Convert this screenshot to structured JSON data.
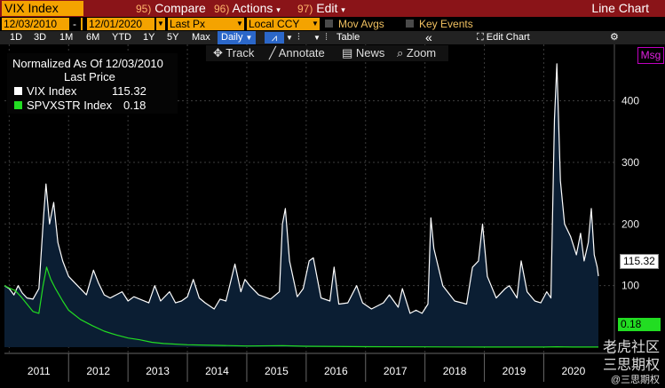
{
  "title_bar": {
    "ticker": "VIX Index",
    "compare": {
      "num": "95)",
      "label": "Compare"
    },
    "actions": {
      "num": "96)",
      "label": "Actions"
    },
    "edit": {
      "num": "97)",
      "label": "Edit"
    },
    "chart_type": "Line Chart"
  },
  "settings_bar": {
    "start_date": "12/03/2010",
    "end_date": "12/01/2020",
    "field": "Last Px",
    "currency": "Local CCY",
    "mov_avgs": "Mov Avgs",
    "key_events": "Key Events"
  },
  "range_bar": {
    "ranges": [
      "1D",
      "3D",
      "1M",
      "6M",
      "YTD",
      "1Y",
      "5Y",
      "Max"
    ],
    "frequency": "Daily",
    "table": "Table",
    "edit_chart": "Edit Chart"
  },
  "toolbar": {
    "track": "Track",
    "annotate": "Annotate",
    "news": "News",
    "zoom": "Zoom"
  },
  "msg_button": "Msg",
  "legend": {
    "header1": "Normalized As Of 12/03/2010",
    "header2": "Last Price",
    "items": [
      {
        "name": "VIX Index",
        "value": "115.32",
        "color": "#ffffff"
      },
      {
        "name": "SPVXSTR Index",
        "value": "0.18",
        "color": "#22dd22"
      }
    ]
  },
  "last_value_tags": {
    "vix": "115.32",
    "spvxstr": "0.18"
  },
  "watermark": {
    "line1": "老虎社区",
    "line2": "三思期权",
    "line3": "@三思期权"
  },
  "colors": {
    "brand_red": "#8a1418",
    "amber": "#f4a300",
    "vix_line": "#ffffff",
    "spvxstr_line": "#22dd22",
    "area_fill": "#0b1e33"
  },
  "chart_data": {
    "type": "line",
    "title": "",
    "xlabel": "",
    "ylabel": "",
    "x_ticks": [
      "2011",
      "2012",
      "2013",
      "2014",
      "2015",
      "2016",
      "2017",
      "2018",
      "2019",
      "2020"
    ],
    "y_ticks": [
      "100",
      "200",
      "300",
      "400"
    ],
    "xlim": [
      2010.92,
      2020.92
    ],
    "ylim": [
      -10,
      480
    ],
    "grid": true,
    "legend_position": "top-left",
    "series": [
      {
        "name": "VIX Index",
        "color": "#ffffff",
        "area": true,
        "points": [
          [
            2010.92,
            100
          ],
          [
            2011.0,
            95
          ],
          [
            2011.08,
            85
          ],
          [
            2011.15,
            100
          ],
          [
            2011.22,
            88
          ],
          [
            2011.3,
            80
          ],
          [
            2011.4,
            78
          ],
          [
            2011.5,
            95
          ],
          [
            2011.58,
            215
          ],
          [
            2011.62,
            265
          ],
          [
            2011.68,
            200
          ],
          [
            2011.75,
            235
          ],
          [
            2011.82,
            170
          ],
          [
            2011.9,
            140
          ],
          [
            2012.0,
            115
          ],
          [
            2012.1,
            105
          ],
          [
            2012.2,
            95
          ],
          [
            2012.3,
            85
          ],
          [
            2012.42,
            125
          ],
          [
            2012.5,
            105
          ],
          [
            2012.6,
            85
          ],
          [
            2012.7,
            80
          ],
          [
            2012.8,
            85
          ],
          [
            2012.9,
            90
          ],
          [
            2013.0,
            75
          ],
          [
            2013.1,
            82
          ],
          [
            2013.2,
            78
          ],
          [
            2013.35,
            72
          ],
          [
            2013.45,
            100
          ],
          [
            2013.55,
            75
          ],
          [
            2013.7,
            90
          ],
          [
            2013.8,
            72
          ],
          [
            2013.9,
            75
          ],
          [
            2014.0,
            82
          ],
          [
            2014.1,
            110
          ],
          [
            2014.2,
            80
          ],
          [
            2014.3,
            72
          ],
          [
            2014.45,
            62
          ],
          [
            2014.55,
            78
          ],
          [
            2014.65,
            75
          ],
          [
            2014.8,
            135
          ],
          [
            2014.9,
            90
          ],
          [
            2014.97,
            110
          ],
          [
            2015.05,
            100
          ],
          [
            2015.2,
            85
          ],
          [
            2015.4,
            78
          ],
          [
            2015.55,
            90
          ],
          [
            2015.6,
            200
          ],
          [
            2015.65,
            225
          ],
          [
            2015.72,
            140
          ],
          [
            2015.85,
            82
          ],
          [
            2015.95,
            95
          ],
          [
            2016.05,
            140
          ],
          [
            2016.12,
            145
          ],
          [
            2016.25,
            80
          ],
          [
            2016.4,
            75
          ],
          [
            2016.47,
            130
          ],
          [
            2016.55,
            70
          ],
          [
            2016.7,
            72
          ],
          [
            2016.85,
            100
          ],
          [
            2016.95,
            72
          ],
          [
            2017.1,
            62
          ],
          [
            2017.3,
            72
          ],
          [
            2017.4,
            85
          ],
          [
            2017.55,
            65
          ],
          [
            2017.62,
            95
          ],
          [
            2017.75,
            55
          ],
          [
            2017.85,
            60
          ],
          [
            2017.95,
            55
          ],
          [
            2018.05,
            70
          ],
          [
            2018.1,
            210
          ],
          [
            2018.15,
            160
          ],
          [
            2018.3,
            100
          ],
          [
            2018.5,
            75
          ],
          [
            2018.7,
            70
          ],
          [
            2018.8,
            130
          ],
          [
            2018.9,
            140
          ],
          [
            2018.97,
            200
          ],
          [
            2019.05,
            115
          ],
          [
            2019.2,
            80
          ],
          [
            2019.35,
            95
          ],
          [
            2019.42,
            100
          ],
          [
            2019.55,
            80
          ],
          [
            2019.62,
            140
          ],
          [
            2019.72,
            90
          ],
          [
            2019.85,
            75
          ],
          [
            2019.95,
            72
          ],
          [
            2020.05,
            90
          ],
          [
            2020.12,
            80
          ],
          [
            2020.18,
            370
          ],
          [
            2020.22,
            460
          ],
          [
            2020.28,
            270
          ],
          [
            2020.35,
            200
          ],
          [
            2020.45,
            180
          ],
          [
            2020.55,
            150
          ],
          [
            2020.62,
            185
          ],
          [
            2020.68,
            140
          ],
          [
            2020.75,
            170
          ],
          [
            2020.8,
            225
          ],
          [
            2020.85,
            150
          ],
          [
            2020.9,
            130
          ],
          [
            2020.92,
            115.32
          ]
        ]
      },
      {
        "name": "SPVXSTR Index",
        "color": "#22dd22",
        "area": false,
        "points": [
          [
            2010.92,
            100
          ],
          [
            2011.0,
            96
          ],
          [
            2011.1,
            92
          ],
          [
            2011.2,
            82
          ],
          [
            2011.3,
            70
          ],
          [
            2011.4,
            58
          ],
          [
            2011.5,
            55
          ],
          [
            2011.57,
            100
          ],
          [
            2011.63,
            130
          ],
          [
            2011.7,
            110
          ],
          [
            2011.78,
            95
          ],
          [
            2011.9,
            75
          ],
          [
            2012.0,
            60
          ],
          [
            2012.2,
            45
          ],
          [
            2012.4,
            35
          ],
          [
            2012.6,
            26
          ],
          [
            2012.8,
            20
          ],
          [
            2013.0,
            15
          ],
          [
            2013.2,
            12
          ],
          [
            2013.4,
            8
          ],
          [
            2013.6,
            6
          ],
          [
            2014.0,
            4
          ],
          [
            2014.5,
            3
          ],
          [
            2015.0,
            2
          ],
          [
            2015.6,
            2.5
          ],
          [
            2016.0,
            1.5
          ],
          [
            2017.0,
            0.8
          ],
          [
            2018.0,
            0.5
          ],
          [
            2019.0,
            0.3
          ],
          [
            2020.0,
            0.2
          ],
          [
            2020.22,
            0.6
          ],
          [
            2020.5,
            0.3
          ],
          [
            2020.92,
            0.18
          ]
        ]
      }
    ]
  }
}
